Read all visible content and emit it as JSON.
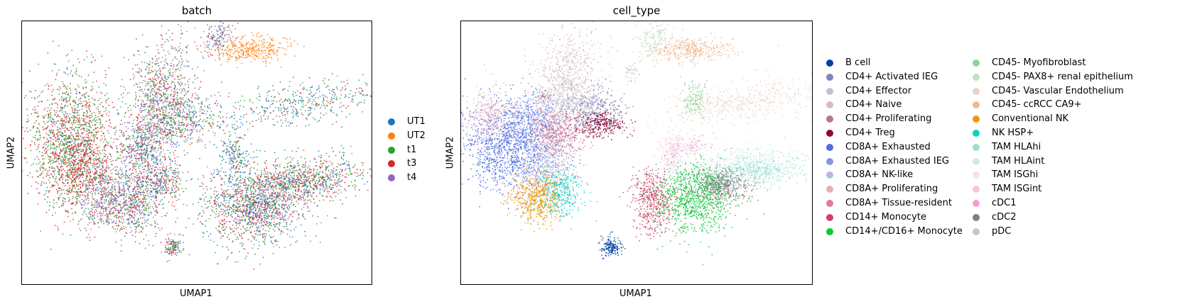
{
  "panels": [
    {
      "title": "batch",
      "xlabel": "UMAP1",
      "ylabel": "UMAP2",
      "legend": [
        {
          "name": "UT1",
          "color": "#1f77b4"
        },
        {
          "name": "UT2",
          "color": "#ff7f0e"
        },
        {
          "name": "t1",
          "color": "#2ca02c"
        },
        {
          "name": "t3",
          "color": "#d62728"
        },
        {
          "name": "t4",
          "color": "#9467bd"
        }
      ]
    },
    {
      "title": "cell_type",
      "xlabel": "UMAP1",
      "ylabel": "UMAP2",
      "legend": [
        {
          "name": "B cell",
          "color": "#023fa5"
        },
        {
          "name": "CD4+ Activated IEG",
          "color": "#7d87b9"
        },
        {
          "name": "CD4+ Effector",
          "color": "#bec1d4"
        },
        {
          "name": "CD4+ Naive",
          "color": "#d6bcc0"
        },
        {
          "name": "CD4+ Proliferating",
          "color": "#bb7784"
        },
        {
          "name": "CD4+ Treg",
          "color": "#8e063b"
        },
        {
          "name": "CD8A+ Exhausted",
          "color": "#4a6fe3"
        },
        {
          "name": "CD8A+ Exhausted IEG",
          "color": "#8595e1"
        },
        {
          "name": "CD8A+ NK-like",
          "color": "#b5bbe3"
        },
        {
          "name": "CD8A+ Proliferating",
          "color": "#e6afb9"
        },
        {
          "name": "CD8A+ Tissue-resident",
          "color": "#e07b91"
        },
        {
          "name": "CD14+ Monocyte",
          "color": "#d33f6a"
        },
        {
          "name": "CD14+/CD16+ Monocyte",
          "color": "#11c638"
        },
        {
          "name": "CD45- Myofibroblast",
          "color": "#8dd593"
        },
        {
          "name": "CD45- PAX8+ renal epithelium",
          "color": "#c6dec7"
        },
        {
          "name": "CD45- Vascular Endothelium",
          "color": "#ead3c6"
        },
        {
          "name": "CD45- ccRCC CA9+",
          "color": "#f0b98d"
        },
        {
          "name": "Conventional NK",
          "color": "#ef9708"
        },
        {
          "name": "NK HSP+",
          "color": "#0fcfc0"
        },
        {
          "name": "TAM HLAhi",
          "color": "#9cded6"
        },
        {
          "name": "TAM HLAint",
          "color": "#d5eae7"
        },
        {
          "name": "TAM ISGhi",
          "color": "#f3e1eb"
        },
        {
          "name": "TAM ISGint",
          "color": "#f6c4e1"
        },
        {
          "name": "cDC1",
          "color": "#f79cd4"
        },
        {
          "name": "cDC2",
          "color": "#7f7f7f"
        },
        {
          "name": "pDC",
          "color": "#c7c7c7"
        }
      ]
    }
  ],
  "chart_data": [
    {
      "type": "scatter",
      "title": "batch",
      "xlabel": "UMAP1",
      "ylabel": "UMAP2",
      "grid": false,
      "legend_position": "right",
      "series": [
        {
          "name": "UT1",
          "color": "#1f77b4"
        },
        {
          "name": "UT2",
          "color": "#ff7f0e"
        },
        {
          "name": "t1",
          "color": "#2ca02c"
        },
        {
          "name": "t3",
          "color": "#d62728"
        },
        {
          "name": "t4",
          "color": "#9467bd"
        }
      ]
    },
    {
      "type": "scatter",
      "title": "cell_type",
      "xlabel": "UMAP1",
      "ylabel": "UMAP2",
      "grid": false,
      "legend_position": "right",
      "series": [
        {
          "name": "B cell"
        },
        {
          "name": "CD4+ Activated IEG"
        },
        {
          "name": "CD4+ Effector"
        },
        {
          "name": "CD4+ Naive"
        },
        {
          "name": "CD4+ Proliferating"
        },
        {
          "name": "CD4+ Treg"
        },
        {
          "name": "CD8A+ Exhausted"
        },
        {
          "name": "CD8A+ Exhausted IEG"
        },
        {
          "name": "CD8A+ NK-like"
        },
        {
          "name": "CD8A+ Proliferating"
        },
        {
          "name": "CD8A+ Tissue-resident"
        },
        {
          "name": "CD14+ Monocyte"
        },
        {
          "name": "CD14+/CD16+ Monocyte"
        },
        {
          "name": "CD45- Myofibroblast"
        },
        {
          "name": "CD45- PAX8+ renal epithelium"
        },
        {
          "name": "CD45- Vascular Endothelium"
        },
        {
          "name": "CD45- ccRCC CA9+"
        },
        {
          "name": "Conventional NK"
        },
        {
          "name": "NK HSP+"
        },
        {
          "name": "TAM HLAhi"
        },
        {
          "name": "TAM HLAint"
        },
        {
          "name": "TAM ISGhi"
        },
        {
          "name": "TAM ISGint"
        },
        {
          "name": "cDC1"
        },
        {
          "name": "cDC2"
        },
        {
          "name": "pDC"
        }
      ]
    }
  ]
}
